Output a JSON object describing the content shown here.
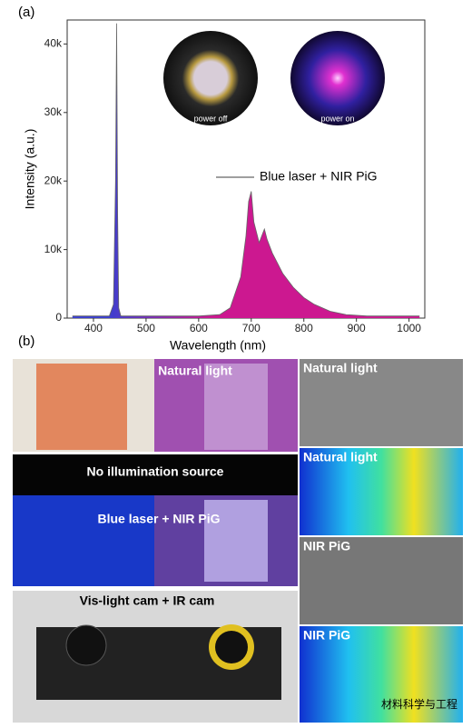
{
  "chart_data": {
    "type": "area",
    "panel_label": "(a)",
    "x_label": "Wavelength (nm)",
    "y_label": "Intensity (a.u.)",
    "xlim": [
      350,
      1030
    ],
    "xticks": [
      400,
      500,
      600,
      700,
      800,
      900,
      1000
    ],
    "ylim": [
      0,
      43500
    ],
    "yticks": [
      0,
      {
        "value": 10000,
        "label": "10k"
      },
      {
        "value": 20000,
        "label": "20k"
      },
      {
        "value": 30000,
        "label": "30k"
      },
      {
        "value": 40000,
        "label": "40k"
      }
    ],
    "x": [
      360,
      430,
      438,
      442,
      444,
      446,
      448,
      452,
      460,
      600,
      640,
      660,
      680,
      690,
      695,
      700,
      705,
      710,
      715,
      720,
      725,
      730,
      740,
      750,
      760,
      780,
      800,
      820,
      850,
      880,
      920,
      1020
    ],
    "series": [
      {
        "name": "Blue laser + NIR PiG",
        "color": "#666666",
        "fill_colors": [
          "#3b3fd0",
          "#cc1890"
        ],
        "values": [
          300,
          300,
          2000,
          20000,
          43000,
          15000,
          1500,
          300,
          300,
          300,
          500,
          1500,
          6000,
          12000,
          17000,
          18500,
          14000,
          12500,
          11000,
          12000,
          13000,
          11500,
          9500,
          8000,
          6500,
          4500,
          3000,
          2000,
          1000,
          500,
          300,
          300
        ]
      }
    ],
    "insets": [
      "power off",
      "power on"
    ]
  },
  "panel_b": {
    "panel_label": "(b)",
    "left": [
      "Natural light",
      "No illumination source",
      "Blue laser + NIR PiG",
      "Vis-light cam + IR cam"
    ],
    "right": [
      "Natural light",
      "Natural light",
      "NIR PiG",
      "NIR PiG"
    ]
  },
  "watermark": "材料科学与工程"
}
